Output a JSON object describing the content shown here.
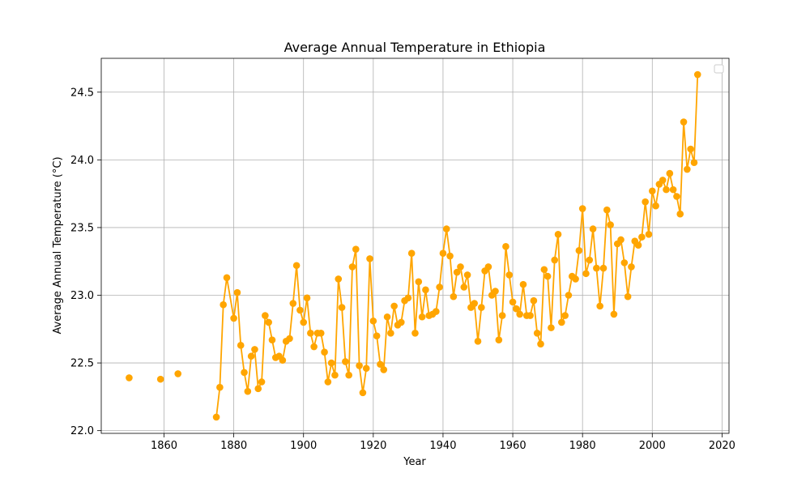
{
  "chart_data": {
    "type": "line",
    "title": "Average Annual Temperature in Ethiopia",
    "xlabel": "Year",
    "ylabel": "Average Annual Temperature (°C)",
    "xlim": [
      1842,
      2022
    ],
    "ylim": [
      21.98,
      24.75
    ],
    "xticks": [
      1860,
      1880,
      1900,
      1920,
      1940,
      1960,
      1980,
      2000,
      2020
    ],
    "yticks": [
      22.0,
      22.5,
      23.0,
      23.5,
      24.0,
      24.5
    ],
    "grid": true,
    "legend": "top-right",
    "color": "#FFA500",
    "series": [
      {
        "name": "",
        "points": [
          [
            1850,
            22.39
          ],
          [
            1859,
            22.38
          ],
          [
            1864,
            22.42
          ],
          [
            1875,
            22.1
          ],
          [
            1876,
            22.32
          ],
          [
            1877,
            22.93
          ],
          [
            1878,
            23.13
          ],
          [
            1880,
            22.83
          ],
          [
            1881,
            23.02
          ],
          [
            1882,
            22.63
          ],
          [
            1883,
            22.43
          ],
          [
            1884,
            22.29
          ],
          [
            1885,
            22.55
          ],
          [
            1886,
            22.6
          ],
          [
            1887,
            22.31
          ],
          [
            1888,
            22.36
          ],
          [
            1889,
            22.85
          ],
          [
            1890,
            22.8
          ],
          [
            1891,
            22.67
          ],
          [
            1892,
            22.54
          ],
          [
            1893,
            22.55
          ],
          [
            1894,
            22.52
          ],
          [
            1895,
            22.66
          ],
          [
            1896,
            22.68
          ],
          [
            1897,
            22.94
          ],
          [
            1898,
            23.22
          ],
          [
            1899,
            22.89
          ],
          [
            1900,
            22.8
          ],
          [
            1901,
            22.98
          ],
          [
            1902,
            22.72
          ],
          [
            1903,
            22.62
          ],
          [
            1904,
            22.72
          ],
          [
            1905,
            22.72
          ],
          [
            1906,
            22.58
          ],
          [
            1907,
            22.36
          ],
          [
            1908,
            22.5
          ],
          [
            1909,
            22.41
          ],
          [
            1910,
            23.12
          ],
          [
            1911,
            22.91
          ],
          [
            1912,
            22.51
          ],
          [
            1913,
            22.41
          ],
          [
            1914,
            23.21
          ],
          [
            1915,
            23.34
          ],
          [
            1916,
            22.48
          ],
          [
            1917,
            22.28
          ],
          [
            1918,
            22.46
          ],
          [
            1919,
            23.27
          ],
          [
            1920,
            22.81
          ],
          [
            1921,
            22.7
          ],
          [
            1922,
            22.49
          ],
          [
            1923,
            22.45
          ],
          [
            1924,
            22.84
          ],
          [
            1925,
            22.72
          ],
          [
            1926,
            22.92
          ],
          [
            1927,
            22.78
          ],
          [
            1928,
            22.8
          ],
          [
            1929,
            22.96
          ],
          [
            1930,
            22.98
          ],
          [
            1931,
            23.31
          ],
          [
            1932,
            22.72
          ],
          [
            1933,
            23.1
          ],
          [
            1934,
            22.84
          ],
          [
            1935,
            23.04
          ],
          [
            1936,
            22.85
          ],
          [
            1937,
            22.86
          ],
          [
            1938,
            22.88
          ],
          [
            1939,
            23.06
          ],
          [
            1940,
            23.31
          ],
          [
            1941,
            23.49
          ],
          [
            1942,
            23.29
          ],
          [
            1943,
            22.99
          ],
          [
            1944,
            23.17
          ],
          [
            1945,
            23.21
          ],
          [
            1946,
            23.06
          ],
          [
            1947,
            23.15
          ],
          [
            1948,
            22.91
          ],
          [
            1949,
            22.94
          ],
          [
            1950,
            22.66
          ],
          [
            1951,
            22.91
          ],
          [
            1952,
            23.18
          ],
          [
            1953,
            23.21
          ],
          [
            1954,
            23.0
          ],
          [
            1955,
            23.03
          ],
          [
            1956,
            22.67
          ],
          [
            1957,
            22.85
          ],
          [
            1958,
            23.36
          ],
          [
            1959,
            23.15
          ],
          [
            1960,
            22.95
          ],
          [
            1961,
            22.9
          ],
          [
            1962,
            22.86
          ],
          [
            1963,
            23.08
          ],
          [
            1964,
            22.85
          ],
          [
            1965,
            22.85
          ],
          [
            1966,
            22.96
          ],
          [
            1967,
            22.72
          ],
          [
            1968,
            22.64
          ],
          [
            1969,
            23.19
          ],
          [
            1970,
            23.14
          ],
          [
            1971,
            22.76
          ],
          [
            1972,
            23.26
          ],
          [
            1973,
            23.45
          ],
          [
            1974,
            22.8
          ],
          [
            1975,
            22.85
          ],
          [
            1976,
            23.0
          ],
          [
            1977,
            23.14
          ],
          [
            1978,
            23.12
          ],
          [
            1979,
            23.33
          ],
          [
            1980,
            23.64
          ],
          [
            1981,
            23.16
          ],
          [
            1982,
            23.26
          ],
          [
            1983,
            23.49
          ],
          [
            1984,
            23.2
          ],
          [
            1985,
            22.92
          ],
          [
            1986,
            23.2
          ],
          [
            1987,
            23.63
          ],
          [
            1988,
            23.52
          ],
          [
            1989,
            22.86
          ],
          [
            1990,
            23.38
          ],
          [
            1991,
            23.41
          ],
          [
            1992,
            23.24
          ],
          [
            1993,
            22.99
          ],
          [
            1994,
            23.21
          ],
          [
            1995,
            23.4
          ],
          [
            1996,
            23.37
          ],
          [
            1997,
            23.43
          ],
          [
            1998,
            23.69
          ],
          [
            1999,
            23.45
          ],
          [
            2000,
            23.77
          ],
          [
            2001,
            23.66
          ],
          [
            2002,
            23.82
          ],
          [
            2003,
            23.85
          ],
          [
            2004,
            23.78
          ],
          [
            2005,
            23.9
          ],
          [
            2006,
            23.78
          ],
          [
            2007,
            23.73
          ],
          [
            2008,
            23.6
          ],
          [
            2009,
            24.28
          ],
          [
            2010,
            23.93
          ],
          [
            2011,
            24.08
          ],
          [
            2012,
            23.98
          ],
          [
            2013,
            24.63
          ]
        ]
      }
    ]
  }
}
